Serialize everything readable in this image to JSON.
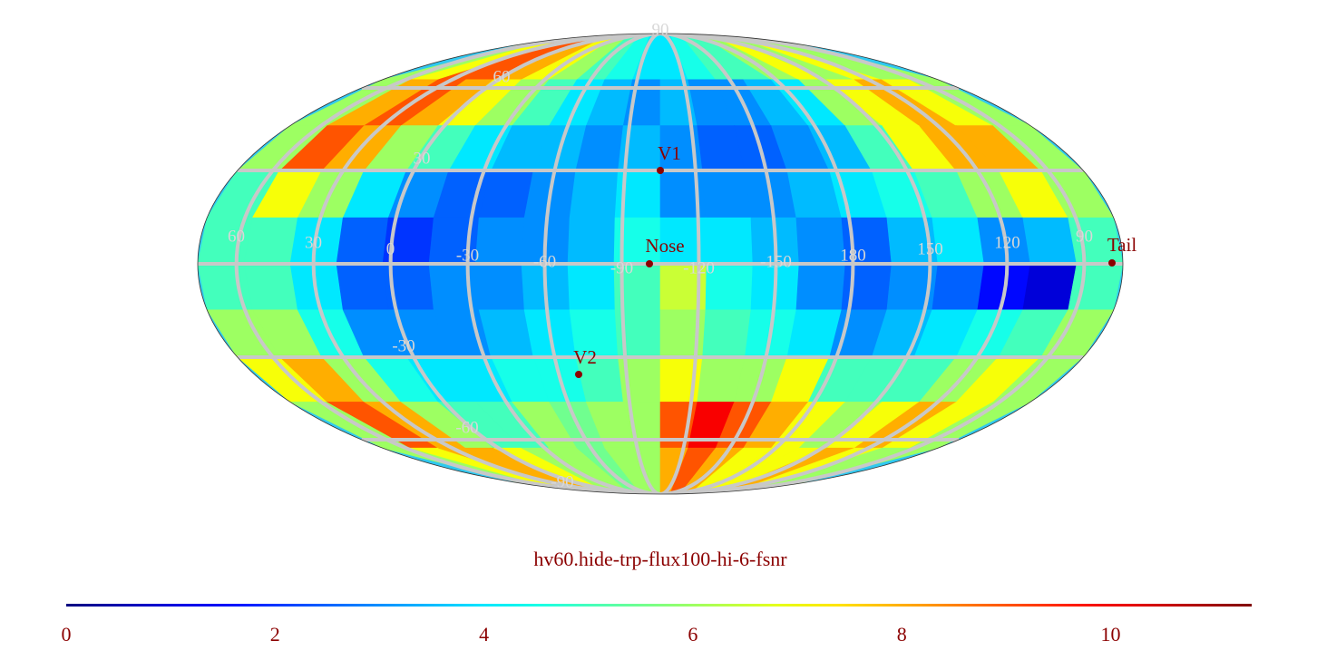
{
  "chart_data": {
    "type": "heatmap",
    "title": "hv60.hide-trp-flux100-hi-6-fsnr",
    "colormap": "jet",
    "clim": [
      0,
      11.35
    ],
    "cticks": [
      0,
      2,
      4,
      6,
      8,
      10
    ],
    "lon_labels": [
      60,
      30,
      0,
      -30,
      -60,
      -90,
      -120,
      -150,
      180,
      150,
      120,
      90
    ],
    "lat_labels": [
      90,
      60,
      30,
      -30,
      -60,
      -90
    ],
    "annotations": [
      "V1",
      "Nose",
      "V2",
      "Tail"
    ],
    "values": [
      [
        6,
        7,
        9,
        9,
        8,
        7,
        6,
        5,
        4.5,
        4,
        4,
        4.5,
        5,
        5,
        6,
        7,
        6,
        7,
        6,
        6
      ],
      [
        6,
        8,
        9,
        8,
        7,
        6,
        5,
        4,
        3.5,
        3,
        3.5,
        3,
        3,
        3.5,
        4,
        6,
        7,
        8,
        7,
        6
      ],
      [
        6,
        9,
        8,
        6,
        5,
        4,
        3.5,
        3.5,
        3,
        3.5,
        3,
        2.5,
        2.5,
        3,
        3.5,
        5,
        7,
        8,
        8,
        6
      ],
      [
        5,
        7,
        6,
        4,
        3,
        2.5,
        2.5,
        3,
        3.5,
        4,
        3,
        3,
        3,
        3.5,
        4,
        4.5,
        5,
        6,
        7,
        6
      ],
      [
        5,
        5,
        4,
        2.5,
        2,
        2.5,
        3,
        3,
        3.5,
        4.5,
        4,
        4,
        3.5,
        3,
        2.5,
        3.5,
        4,
        3,
        3.5,
        5
      ],
      [
        5,
        5,
        4,
        2.5,
        2.5,
        3,
        3,
        3.5,
        4,
        5,
        6.5,
        4.5,
        4,
        3,
        2.5,
        3,
        2.5,
        1.5,
        1,
        5
      ],
      [
        6,
        6,
        4.5,
        3,
        3,
        3,
        3.5,
        4,
        4.5,
        5,
        6,
        5,
        4.5,
        4,
        3,
        3.5,
        4,
        4.5,
        5,
        6
      ],
      [
        7,
        8,
        6,
        4.5,
        4,
        4,
        4.5,
        4.5,
        5,
        6,
        7,
        6,
        6,
        7,
        5,
        5,
        5,
        6,
        7,
        6
      ],
      [
        6,
        9,
        8,
        6,
        5,
        5,
        6,
        5.5,
        6,
        6,
        9,
        10,
        9,
        8,
        7,
        6,
        7,
        8,
        7,
        6
      ],
      [
        6,
        7,
        8,
        8,
        7,
        6,
        6,
        5.5,
        6,
        6,
        8,
        9,
        8,
        7,
        7,
        7,
        8,
        7,
        6,
        6
      ]
    ]
  }
}
